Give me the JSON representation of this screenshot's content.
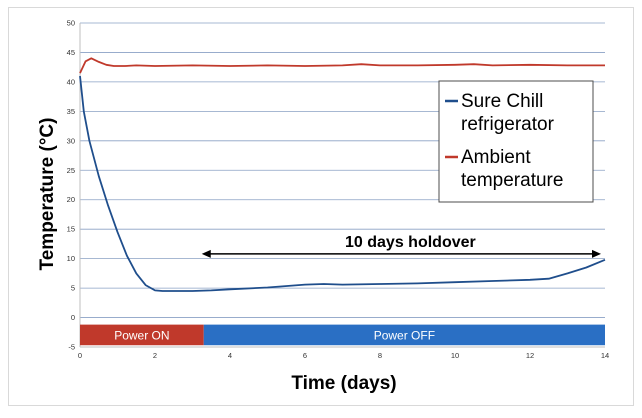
{
  "chart_data": {
    "type": "line",
    "xlabel": "Time (days)",
    "ylabel": "Temperature (°C)",
    "xlim": [
      0,
      14
    ],
    "ylim": [
      -5,
      50
    ],
    "xticks": [
      0,
      2,
      4,
      6,
      8,
      10,
      12,
      14
    ],
    "yticks": [
      -5,
      0,
      5,
      10,
      15,
      20,
      25,
      30,
      35,
      40,
      45,
      50
    ],
    "grid": "horizontal",
    "legend_position": "right",
    "series": [
      {
        "name": "Sure Chill refrigerator",
        "color": "#1f4e8c",
        "x": [
          0,
          0.1,
          0.25,
          0.5,
          0.75,
          1.0,
          1.25,
          1.5,
          1.75,
          2.0,
          2.2,
          2.5,
          3.0,
          3.5,
          4.0,
          5.0,
          6.0,
          6.5,
          7.0,
          8.0,
          9.0,
          10.0,
          11.0,
          12.0,
          12.5,
          13.0,
          13.5,
          14.0
        ],
        "y": [
          41,
          35,
          30,
          24,
          19,
          14.5,
          10.5,
          7.5,
          5.5,
          4.6,
          4.5,
          4.5,
          4.5,
          4.6,
          4.8,
          5.1,
          5.6,
          5.7,
          5.6,
          5.7,
          5.8,
          6.0,
          6.2,
          6.4,
          6.6,
          7.5,
          8.5,
          9.8
        ]
      },
      {
        "name": "Ambient temperature",
        "color": "#c0392b",
        "x": [
          0,
          0.15,
          0.3,
          0.5,
          0.7,
          0.9,
          1.2,
          1.5,
          2.0,
          3.0,
          4.0,
          5.0,
          6.0,
          7.0,
          7.5,
          8.0,
          9.0,
          10.0,
          10.5,
          11.0,
          12.0,
          13.0,
          14.0
        ],
        "y": [
          41.5,
          43.5,
          44.0,
          43.4,
          42.9,
          42.7,
          42.7,
          42.8,
          42.7,
          42.8,
          42.7,
          42.8,
          42.7,
          42.8,
          43.0,
          42.8,
          42.8,
          42.9,
          43.0,
          42.8,
          42.9,
          42.8,
          42.8
        ]
      }
    ],
    "annotations": {
      "holdover": {
        "label": "10 days holdover",
        "from_x": 3.3,
        "to_x": 14,
        "y": 10.8
      }
    },
    "bands": [
      {
        "label": "Power ON",
        "from_x": 0,
        "to_x": 3.3,
        "color": "#c0392b"
      },
      {
        "label": "Power OFF",
        "from_x": 3.3,
        "to_x": 14,
        "color": "#2a6fc4"
      }
    ]
  },
  "colors": {
    "grid": "#8aa0c4",
    "plot_border": "#bfbfbf"
  }
}
